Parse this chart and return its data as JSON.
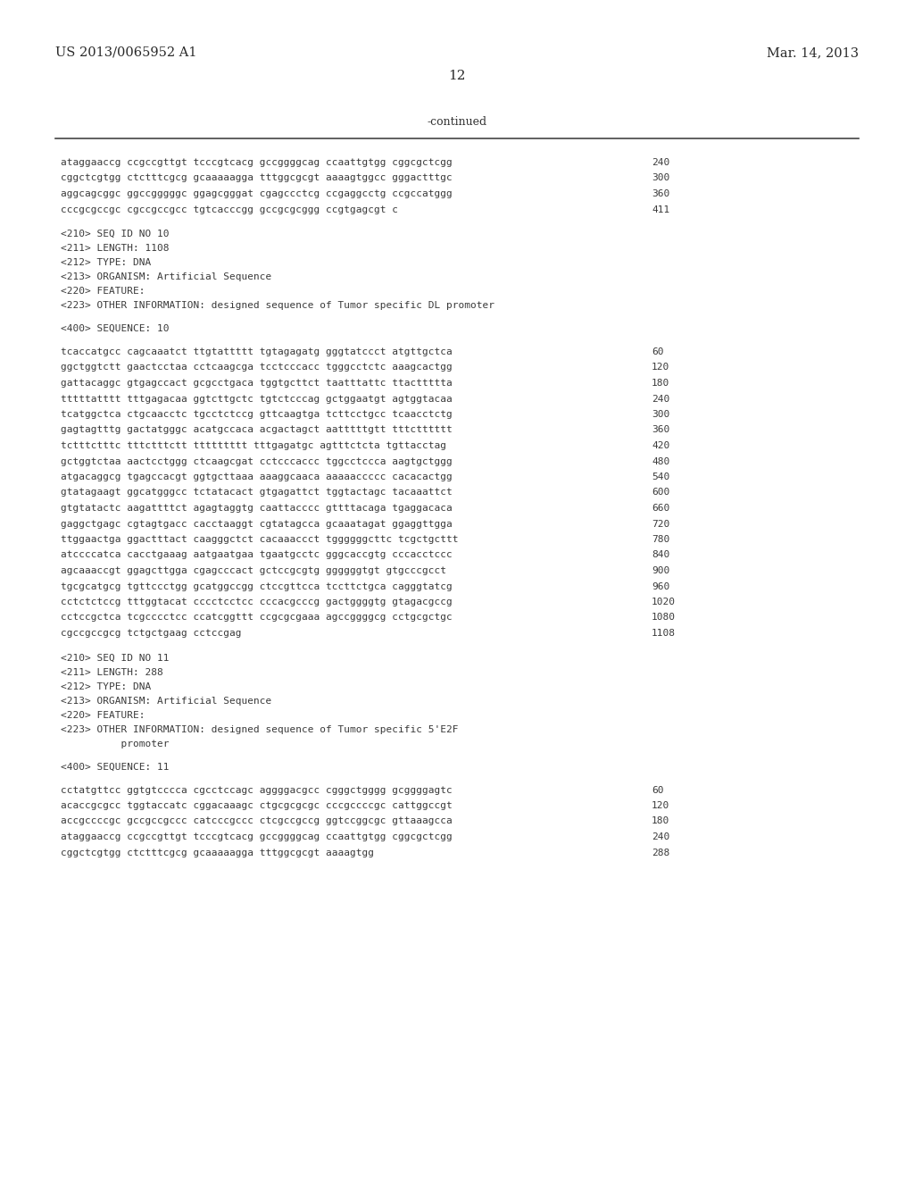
{
  "background_color": "#ffffff",
  "header_left": "US 2013/0065952 A1",
  "header_right": "Mar. 14, 2013",
  "page_number": "12",
  "continued_label": "-continued",
  "content": [
    {
      "type": "seq_line",
      "text": "ataggaaccg ccgccgttgt tcccgtcacg gccggggcag ccaattgtgg cggcgctcgg",
      "num": "240"
    },
    {
      "type": "seq_line",
      "text": "cggctcgtgg ctctttcgcg gcaaaaagga tttggcgcgt aaaagtggcc gggactttgc",
      "num": "300"
    },
    {
      "type": "seq_line",
      "text": "aggcagcggc ggccgggggc ggagcgggat cgagccctcg ccgaggcctg ccgccatggg",
      "num": "360"
    },
    {
      "type": "seq_line",
      "text": "cccgcgccgc cgccgccgcc tgtcacccgg gccgcgcggg ccgtgagcgt c",
      "num": "411"
    },
    {
      "type": "blank"
    },
    {
      "type": "meta",
      "text": "<210> SEQ ID NO 10"
    },
    {
      "type": "meta",
      "text": "<211> LENGTH: 1108"
    },
    {
      "type": "meta",
      "text": "<212> TYPE: DNA"
    },
    {
      "type": "meta",
      "text": "<213> ORGANISM: Artificial Sequence"
    },
    {
      "type": "meta",
      "text": "<220> FEATURE:"
    },
    {
      "type": "meta",
      "text": "<223> OTHER INFORMATION: designed sequence of Tumor specific DL promoter"
    },
    {
      "type": "blank"
    },
    {
      "type": "meta",
      "text": "<400> SEQUENCE: 10"
    },
    {
      "type": "blank"
    },
    {
      "type": "seq_line",
      "text": "tcaccatgcc cagcaaatct ttgtattttt tgtagagatg gggtatccct atgttgctca",
      "num": "60"
    },
    {
      "type": "seq_line",
      "text": "ggctggtctt gaactcctaa cctcaagcga tcctcccacc tgggcctctc aaagcactgg",
      "num": "120"
    },
    {
      "type": "seq_line",
      "text": "gattacaggc gtgagccact gcgcctgaca tggtgcttct taatttattc ttacttttta",
      "num": "180"
    },
    {
      "type": "seq_line",
      "text": "tttttatttt tttgagacaa ggtcttgctc tgtctcccag gctggaatgt agtggtacaa",
      "num": "240"
    },
    {
      "type": "seq_line",
      "text": "tcatggctca ctgcaacctc tgcctctccg gttcaagtga tcttcctgcc tcaacctctg",
      "num": "300"
    },
    {
      "type": "seq_line",
      "text": "gagtagtttg gactatgggc acatgccaca acgactagct aatttttgtt tttctttttt",
      "num": "360"
    },
    {
      "type": "seq_line",
      "text": "tctttctttc tttctttctt ttttttttt tttgagatgc agtttctcta tgttacctag",
      "num": "420"
    },
    {
      "type": "seq_line",
      "text": "gctggtctaa aactcctggg ctcaagcgat cctcccaccc tggcctccca aagtgctggg",
      "num": "480"
    },
    {
      "type": "seq_line",
      "text": "atgacaggcg tgagccacgt ggtgcttaaa aaaggcaaca aaaaaccccc cacacactgg",
      "num": "540"
    },
    {
      "type": "seq_line",
      "text": "gtatagaagt ggcatgggcc tctatacact gtgagattct tggtactagc tacaaattct",
      "num": "600"
    },
    {
      "type": "seq_line",
      "text": "gtgtatactc aagattttct agagtaggtg caattacccc gttttacaga tgaggacaca",
      "num": "660"
    },
    {
      "type": "seq_line",
      "text": "gaggctgagc cgtagtgacc cacctaaggt cgtatagcca gcaaatagat ggaggttgga",
      "num": "720"
    },
    {
      "type": "seq_line",
      "text": "ttggaactga ggactttact caagggctct cacaaaccct tggggggcttc tcgctgcttt",
      "num": "780"
    },
    {
      "type": "seq_line",
      "text": "atccccatca cacctgaaag aatgaatgaa tgaatgcctc gggcaccgtg cccacctccc",
      "num": "840"
    },
    {
      "type": "seq_line",
      "text": "agcaaaccgt ggagcttgga cgagcccact gctccgcgtg ggggggtgt gtgcccgcct",
      "num": "900"
    },
    {
      "type": "seq_line",
      "text": "tgcgcatgcg tgttccctgg gcatggccgg ctccgttcca tccttctgca cagggtatcg",
      "num": "960"
    },
    {
      "type": "seq_line",
      "text": "cctctctccg tttggtacat cccctcctcc cccacgcccg gactggggtg gtagacgccg",
      "num": "1020"
    },
    {
      "type": "seq_line",
      "text": "cctccgctca tcgcccctcc ccatcggttt ccgcgcgaaa agccggggcg cctgcgctgc",
      "num": "1080"
    },
    {
      "type": "seq_line",
      "text": "cgccgccgcg tctgctgaag cctccgag",
      "num": "1108"
    },
    {
      "type": "blank"
    },
    {
      "type": "meta",
      "text": "<210> SEQ ID NO 11"
    },
    {
      "type": "meta",
      "text": "<211> LENGTH: 288"
    },
    {
      "type": "meta",
      "text": "<212> TYPE: DNA"
    },
    {
      "type": "meta",
      "text": "<213> ORGANISM: Artificial Sequence"
    },
    {
      "type": "meta",
      "text": "<220> FEATURE:"
    },
    {
      "type": "meta",
      "text": "<223> OTHER INFORMATION: designed sequence of Tumor specific 5'E2F"
    },
    {
      "type": "meta_indent",
      "text": "          promoter"
    },
    {
      "type": "blank"
    },
    {
      "type": "meta",
      "text": "<400> SEQUENCE: 11"
    },
    {
      "type": "blank"
    },
    {
      "type": "seq_line",
      "text": "cctatgttcc ggtgtcccca cgcctccagc aggggacgcc cgggctgggg gcggggagtc",
      "num": "60"
    },
    {
      "type": "seq_line",
      "text": "acaccgcgcc tggtaccatc cggacaaagc ctgcgcgcgc cccgccccgc cattggccgt",
      "num": "120"
    },
    {
      "type": "seq_line",
      "text": "accgccccgc gccgccgccc catcccgccc ctcgccgccg ggtccggcgc gttaaagcca",
      "num": "180"
    },
    {
      "type": "seq_line",
      "text": "ataggaaccg ccgccgttgt tcccgtcacg gccggggcag ccaattgtgg cggcgctcgg",
      "num": "240"
    },
    {
      "type": "seq_line",
      "text": "cggctcgtgg ctctttcgcg gcaaaaagga tttggcgcgt aaaagtgg",
      "num": "288"
    }
  ]
}
